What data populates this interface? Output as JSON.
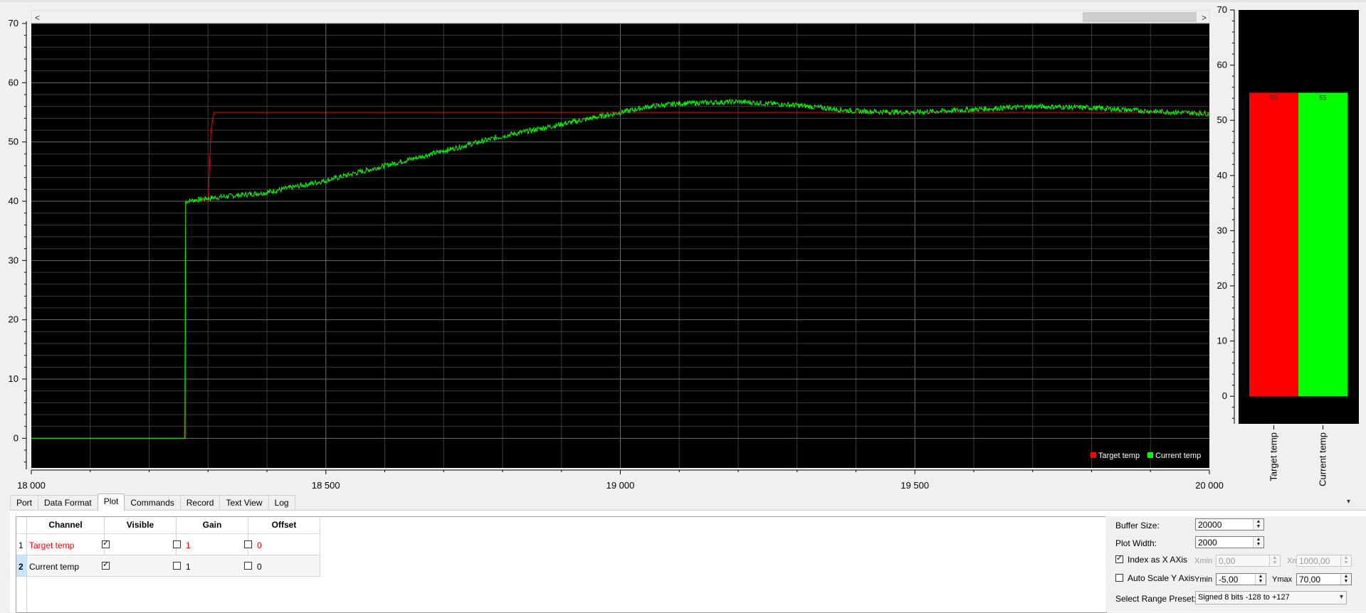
{
  "plot": {
    "y_ticks": [
      "70",
      "60",
      "50",
      "40",
      "30",
      "20",
      "10",
      "0"
    ],
    "x_ticks": [
      "18 000",
      "18 500",
      "19 000",
      "19 500",
      "20 000"
    ],
    "scroll_left": "<",
    "scroll_right": ">",
    "legend": [
      {
        "name": "Target temp",
        "color": "#ff0000"
      },
      {
        "name": "Current temp",
        "color": "#00ff00"
      }
    ]
  },
  "chart_data": {
    "type": "line",
    "xlim": [
      18000,
      20000
    ],
    "ylim": [
      -5,
      70
    ],
    "grid": true,
    "legend_position": "bottom-right",
    "series": [
      {
        "name": "Target temp",
        "color": "#ff0000",
        "x": [
          18000,
          18260,
          18262,
          18300,
          18305,
          18310,
          20000
        ],
        "y": [
          0,
          0,
          40,
          40,
          52,
          55,
          55
        ]
      },
      {
        "name": "Current temp",
        "color": "#00ff00",
        "x": [
          18000,
          18260,
          18262,
          18300,
          18400,
          18500,
          18600,
          18700,
          18800,
          18900,
          19000,
          19050,
          19100,
          19200,
          19300,
          19400,
          19500,
          19600,
          19700,
          19800,
          19900,
          20000
        ],
        "y": [
          0,
          0,
          40,
          40.5,
          41.5,
          43.5,
          46,
          48.5,
          51,
          53,
          55,
          56,
          56.5,
          56.8,
          56.2,
          55.2,
          55,
          55.5,
          56,
          55.8,
          55.2,
          54.8
        ]
      }
    ]
  },
  "bars": {
    "y_ticks": [
      "70",
      "60",
      "50",
      "40",
      "30",
      "20",
      "10",
      "0"
    ],
    "ylim": [
      -5,
      70
    ],
    "items": [
      {
        "name": "Target temp",
        "value": 55,
        "label": "55",
        "color": "#ff0000"
      },
      {
        "name": "Current temp",
        "value": 55,
        "label": "55",
        "color": "#00ff00"
      }
    ]
  },
  "tabs": [
    "Port",
    "Data Format",
    "Plot",
    "Commands",
    "Record",
    "Text View",
    "Log"
  ],
  "active_tab": "Plot",
  "channels": {
    "headers": [
      "Channel",
      "Visible",
      "Gain",
      "Offset"
    ],
    "rows": [
      {
        "index": "1",
        "name": "Target temp",
        "color": "#ff0000",
        "visible": true,
        "gain_enabled": false,
        "gain": "1",
        "offset_enabled": false,
        "offset": "0"
      },
      {
        "index": "2",
        "name": "Current temp",
        "color": "#000000",
        "visible": true,
        "gain_enabled": false,
        "gain": "1",
        "offset_enabled": false,
        "offset": "0"
      }
    ]
  },
  "settings": {
    "buffer_size_label": "Buffer Size:",
    "buffer_size": "20000",
    "plot_width_label": "Plot Width:",
    "plot_width": "2000",
    "index_as_x_label": "Index as X AXis",
    "index_as_x_checked": true,
    "xmin_label": "Xmin",
    "xmin": "0,00",
    "xmax_label": "Xmax",
    "xmax": "1000,00",
    "auto_scale_label": "Auto Scale Y Axis",
    "auto_scale_checked": false,
    "ymin_label": "Ymin",
    "ymin": "-5,00",
    "ymax_label": "Ymax",
    "ymax": "70,00",
    "range_preset_label": "Select Range Preset:",
    "range_preset": "Signed 8 bits -128 to +127"
  },
  "panel_menu_arrow": "▾"
}
